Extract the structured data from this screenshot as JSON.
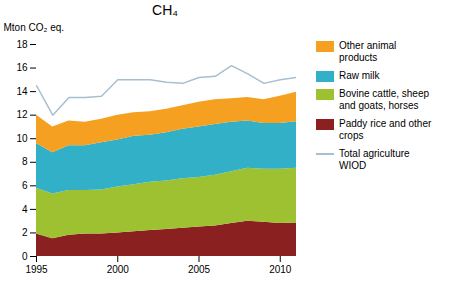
{
  "chart_data": {
    "type": "area",
    "stacked": true,
    "title": "CH₄",
    "ylabel": "Mton CO₂ eq.",
    "x": [
      1995,
      1996,
      1997,
      1998,
      1999,
      2000,
      2001,
      2002,
      2003,
      2004,
      2005,
      2006,
      2007,
      2008,
      2009,
      2010,
      2011
    ],
    "series": [
      {
        "name": "Paddy rice and other\ncrops",
        "type": "area",
        "color": "#8B2020",
        "values": [
          1.9,
          1.5,
          1.8,
          1.9,
          1.9,
          2.0,
          2.1,
          2.2,
          2.3,
          2.4,
          2.5,
          2.6,
          2.8,
          3.0,
          2.9,
          2.8,
          2.85
        ]
      },
      {
        "name": "Bovine cattle, sheep\nand goats, horses",
        "type": "area",
        "color": "#9DC130",
        "values": [
          3.9,
          3.8,
          3.8,
          3.7,
          3.75,
          3.9,
          4.0,
          4.1,
          4.1,
          4.2,
          4.2,
          4.3,
          4.4,
          4.5,
          4.5,
          4.6,
          4.65
        ]
      },
      {
        "name": "Raw milk",
        "type": "area",
        "color": "#31B0C8",
        "values": [
          3.8,
          3.5,
          3.8,
          3.8,
          4.0,
          4.0,
          4.1,
          4.0,
          4.1,
          4.2,
          4.3,
          4.3,
          4.2,
          4.0,
          3.9,
          3.9,
          3.95
        ]
      },
      {
        "name": "Other animal\nproducts",
        "type": "area",
        "color": "#F5A020",
        "values": [
          2.4,
          2.2,
          2.1,
          2.0,
          2.0,
          2.1,
          2.0,
          2.0,
          2.0,
          2.0,
          2.1,
          2.1,
          2.0,
          2.0,
          2.0,
          2.3,
          2.5
        ]
      },
      {
        "name": "Total agriculture\nWIOD",
        "type": "line",
        "color": "#A8BFD0",
        "values": [
          14.5,
          12.0,
          13.5,
          13.5,
          13.6,
          15.0,
          15.0,
          15.0,
          14.8,
          14.7,
          15.2,
          15.3,
          16.2,
          15.5,
          14.7,
          15.0,
          15.2
        ]
      }
    ],
    "xlim": [
      1995,
      2011
    ],
    "xticks": [
      1995,
      2000,
      2005,
      2010
    ],
    "ylim": [
      0,
      18
    ],
    "yticks": [
      0,
      2,
      4,
      6,
      8,
      10,
      12,
      14,
      16,
      18
    ],
    "grid": false,
    "legend": "right"
  }
}
